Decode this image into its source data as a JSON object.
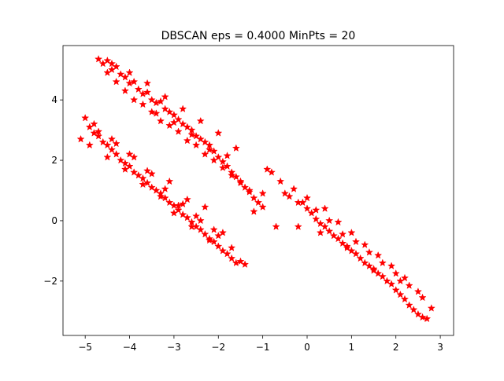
{
  "chart_data": {
    "type": "scatter",
    "title": "DBSCAN eps = 0.4000 MinPts = 20",
    "xlabel": "",
    "ylabel": "",
    "xlim": [
      -5.5,
      3.3
    ],
    "ylim": [
      -3.8,
      5.8
    ],
    "xticks": [
      -5,
      -4,
      -3,
      -2,
      -1,
      0,
      1,
      2,
      3
    ],
    "xtick_labels": [
      "−5",
      "−4",
      "−3",
      "−2",
      "−1",
      "0",
      "1",
      "2",
      "3"
    ],
    "yticks": [
      -2,
      0,
      2,
      4
    ],
    "ytick_labels": [
      "−2",
      "0",
      "2",
      "4"
    ],
    "marker": "star",
    "color": "#ff0000",
    "grid": false,
    "series": [
      {
        "cluster": "upper-left band",
        "x": [
          -4.7,
          -4.6,
          -4.5,
          -4.4,
          -4.3,
          -4.2,
          -4.1,
          -4.0,
          -3.9,
          -3.8,
          -3.7,
          -3.6,
          -3.5,
          -3.4,
          -3.3,
          -3.2,
          -3.1,
          -3.0,
          -2.9,
          -2.8,
          -2.7,
          -2.6,
          -2.5,
          -2.4,
          -2.3,
          -2.2,
          -2.1,
          -2.0,
          -1.9,
          -1.8,
          -1.7,
          -1.6,
          -1.5,
          -1.4,
          -1.3,
          -1.2,
          -1.1,
          -1.0,
          -4.5,
          -4.3,
          -4.1,
          -3.9,
          -3.7,
          -3.5,
          -3.3,
          -3.1,
          -2.9,
          -2.7,
          -2.5,
          -2.3,
          -2.1,
          -1.9,
          -1.7,
          -1.5,
          -1.3,
          -4.4,
          -4.0,
          -3.6,
          -3.2,
          -2.8,
          -2.4,
          -2.0,
          -1.6,
          -3.4,
          -3.0,
          -2.6,
          -2.2,
          -1.8
        ],
        "y": [
          5.35,
          5.2,
          5.3,
          5.0,
          5.1,
          4.85,
          4.75,
          4.55,
          4.6,
          4.35,
          4.2,
          4.25,
          4.0,
          3.9,
          3.95,
          3.7,
          3.6,
          3.5,
          3.35,
          3.2,
          3.1,
          3.0,
          2.8,
          2.7,
          2.6,
          2.35,
          2.3,
          2.1,
          1.95,
          1.8,
          1.6,
          1.45,
          1.3,
          1.1,
          0.95,
          0.75,
          0.6,
          0.45,
          4.9,
          4.6,
          4.3,
          4.0,
          3.85,
          3.6,
          3.3,
          3.15,
          2.95,
          2.65,
          2.5,
          2.2,
          2.0,
          1.75,
          1.5,
          1.25,
          1.0,
          5.2,
          4.9,
          4.55,
          4.1,
          3.7,
          3.3,
          2.9,
          2.4,
          3.55,
          3.25,
          2.85,
          2.5,
          2.15
        ]
      },
      {
        "cluster": "lower-left band",
        "x": [
          -5.1,
          -5.0,
          -4.9,
          -4.8,
          -4.7,
          -4.6,
          -4.5,
          -4.4,
          -4.3,
          -4.2,
          -4.1,
          -4.0,
          -3.9,
          -3.8,
          -3.7,
          -3.6,
          -3.5,
          -3.4,
          -3.3,
          -3.2,
          -3.1,
          -3.0,
          -2.9,
          -2.8,
          -2.7,
          -2.6,
          -2.5,
          -2.4,
          -2.3,
          -2.2,
          -2.1,
          -2.0,
          -1.9,
          -1.8,
          -1.7,
          -1.6,
          -1.5,
          -1.4,
          -4.9,
          -4.7,
          -4.5,
          -4.3,
          -4.1,
          -3.9,
          -3.7,
          -3.5,
          -3.3,
          -3.1,
          -2.9,
          -2.7,
          -2.5,
          -2.3,
          -2.1,
          -1.9,
          -1.7,
          -4.8,
          -4.4,
          -4.0,
          -3.6,
          -3.2,
          -2.8,
          -2.4,
          -2.0,
          -3.0,
          -2.6,
          -2.2
        ],
        "y": [
          2.7,
          3.4,
          3.1,
          2.9,
          2.8,
          2.6,
          2.5,
          2.35,
          2.2,
          2.0,
          1.9,
          1.8,
          1.6,
          1.5,
          1.4,
          1.25,
          1.1,
          1.0,
          0.9,
          0.75,
          0.6,
          0.5,
          0.35,
          0.2,
          0.1,
          -0.05,
          -0.2,
          -0.3,
          -0.45,
          -0.6,
          -0.7,
          -0.85,
          -1.0,
          -1.1,
          -1.25,
          -1.4,
          -1.35,
          -1.45,
          2.5,
          2.95,
          2.1,
          2.55,
          1.7,
          2.1,
          1.2,
          1.55,
          0.8,
          1.3,
          0.5,
          0.7,
          0.15,
          0.45,
          -0.3,
          -0.4,
          -0.9,
          3.2,
          2.7,
          2.2,
          1.65,
          1.05,
          0.55,
          0.0,
          -0.5,
          0.25,
          -0.2,
          -0.65
        ]
      },
      {
        "cluster": "right band",
        "x": [
          -1.2,
          -1.0,
          -0.8,
          -0.6,
          -0.4,
          -0.2,
          0.0,
          0.1,
          0.2,
          0.3,
          0.4,
          0.5,
          0.6,
          0.7,
          0.8,
          0.9,
          1.0,
          1.1,
          1.2,
          1.3,
          1.4,
          1.5,
          1.6,
          1.7,
          1.8,
          1.9,
          2.0,
          2.1,
          2.2,
          2.3,
          2.4,
          2.5,
          2.6,
          2.7,
          2.8,
          -0.9,
          -0.5,
          -0.1,
          0.2,
          0.5,
          0.8,
          1.1,
          1.4,
          1.7,
          2.0,
          2.3,
          2.6,
          -0.3,
          0.0,
          0.4,
          0.7,
          1.0,
          1.3,
          1.6,
          1.9,
          2.2,
          2.5,
          -0.7,
          -0.2,
          0.3,
          0.9,
          1.5,
          2.1
        ],
        "y": [
          0.3,
          0.9,
          1.6,
          1.3,
          0.8,
          0.6,
          0.4,
          0.25,
          0.05,
          -0.1,
          -0.2,
          -0.35,
          -0.5,
          -0.6,
          -0.75,
          -0.9,
          -1.0,
          -1.1,
          -1.25,
          -1.4,
          -1.5,
          -1.6,
          -1.75,
          -1.85,
          -2.0,
          -2.1,
          -2.3,
          -2.45,
          -2.6,
          -2.8,
          -2.95,
          -3.1,
          -3.2,
          -3.25,
          -2.9,
          1.7,
          0.9,
          0.6,
          0.35,
          0.0,
          -0.45,
          -0.7,
          -1.05,
          -1.4,
          -1.75,
          -2.15,
          -2.55,
          1.05,
          0.75,
          0.4,
          -0.05,
          -0.4,
          -0.8,
          -1.15,
          -1.5,
          -1.9,
          -2.35,
          -0.2,
          -0.2,
          -0.4,
          -0.85,
          -1.65,
          -2.0
        ]
      }
    ]
  }
}
